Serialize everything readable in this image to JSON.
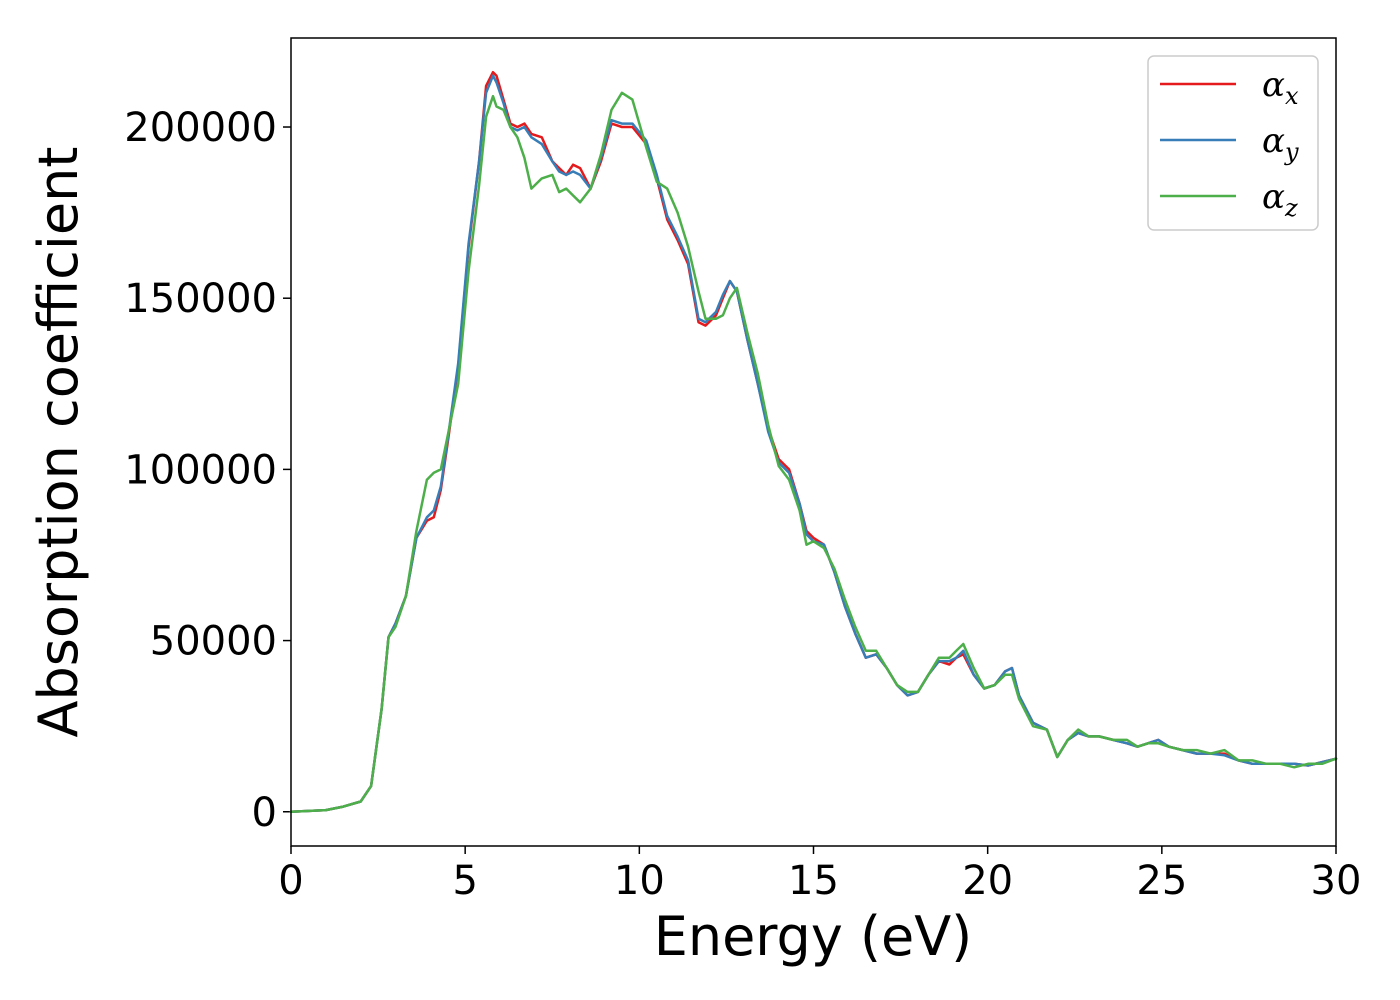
{
  "chart_data": {
    "type": "line",
    "title": "",
    "xlabel": "Energy (eV)",
    "ylabel": "Absorption coefficient",
    "xlim": [
      0,
      30
    ],
    "ylim": [
      -10000,
      226000
    ],
    "x_ticks": [
      0,
      5,
      10,
      15,
      20,
      25,
      30
    ],
    "y_ticks": [
      0,
      50000,
      100000,
      150000,
      200000
    ],
    "grid": false,
    "legend_position": "top-right",
    "series": [
      {
        "name": "α",
        "subscript": "x",
        "color": "#e41a1c",
        "x": [
          0,
          1,
          1.5,
          2,
          2.3,
          2.6,
          2.8,
          3,
          3.3,
          3.6,
          3.9,
          4.1,
          4.3,
          4.5,
          4.8,
          5.1,
          5.4,
          5.6,
          5.8,
          5.9,
          6.1,
          6.3,
          6.5,
          6.7,
          6.9,
          7.2,
          7.5,
          7.7,
          7.9,
          8.1,
          8.3,
          8.6,
          8.9,
          9.2,
          9.5,
          9.8,
          10.2,
          10.5,
          10.8,
          11.1,
          11.4,
          11.7,
          11.9,
          12.2,
          12.4,
          12.6,
          12.8,
          13.1,
          13.4,
          13.7,
          14,
          14.3,
          14.6,
          14.8,
          15,
          15.3,
          15.6,
          15.9,
          16.2,
          16.5,
          16.8,
          17.1,
          17.4,
          17.7,
          18,
          18.3,
          18.6,
          18.9,
          19.1,
          19.3,
          19.6,
          19.9,
          20.2,
          20.5,
          20.7,
          20.9,
          21.3,
          21.7,
          22,
          22.3,
          22.6,
          22.9,
          23.2,
          23.6,
          24,
          24.3,
          24.6,
          24.9,
          25.2,
          25.6,
          26,
          26.4,
          26.8,
          27.2,
          27.6,
          28,
          28.4,
          28.8,
          29.2,
          29.6,
          30
        ],
        "y": [
          0,
          500,
          1500,
          3000,
          7500,
          30000,
          51000,
          55000,
          63000,
          80000,
          85000,
          86000,
          94000,
          108000,
          130000,
          165000,
          190000,
          212000,
          216000,
          215000,
          208000,
          201000,
          200000,
          201000,
          198000,
          197000,
          190000,
          188000,
          186000,
          189000,
          188000,
          182000,
          190000,
          201000,
          200000,
          200000,
          195000,
          185000,
          173000,
          167000,
          160000,
          143000,
          142000,
          145000,
          150000,
          155000,
          152000,
          138000,
          125000,
          112000,
          103000,
          100000,
          90000,
          82000,
          80000,
          78000,
          70000,
          60000,
          52000,
          45000,
          46000,
          42000,
          37000,
          34000,
          35000,
          40000,
          44000,
          43000,
          45000,
          46000,
          40000,
          36000,
          37000,
          41000,
          42000,
          34000,
          26000,
          24000,
          16000,
          21000,
          23000,
          22000,
          22000,
          21000,
          20000,
          19000,
          20000,
          21000,
          19000,
          18000,
          17000,
          17000,
          17000,
          15000,
          14000,
          14000,
          14000,
          14000,
          13500,
          14500,
          15500
        ]
      },
      {
        "name": "α",
        "subscript": "y",
        "color": "#377eb8",
        "x": [
          0,
          1,
          1.5,
          2,
          2.3,
          2.6,
          2.8,
          3,
          3.3,
          3.6,
          3.9,
          4.1,
          4.3,
          4.5,
          4.8,
          5.1,
          5.4,
          5.6,
          5.8,
          5.9,
          6.1,
          6.3,
          6.5,
          6.7,
          6.9,
          7.2,
          7.5,
          7.7,
          7.9,
          8.1,
          8.3,
          8.6,
          8.9,
          9.2,
          9.5,
          9.8,
          10.2,
          10.5,
          10.8,
          11.1,
          11.4,
          11.7,
          11.9,
          12.2,
          12.4,
          12.6,
          12.8,
          13.1,
          13.4,
          13.7,
          14,
          14.3,
          14.6,
          14.8,
          15,
          15.3,
          15.6,
          15.9,
          16.2,
          16.5,
          16.8,
          17.1,
          17.4,
          17.7,
          18,
          18.3,
          18.6,
          18.9,
          19.1,
          19.3,
          19.6,
          19.9,
          20.2,
          20.5,
          20.7,
          20.9,
          21.3,
          21.7,
          22,
          22.3,
          22.6,
          22.9,
          23.2,
          23.6,
          24,
          24.3,
          24.6,
          24.9,
          25.2,
          25.6,
          26,
          26.4,
          26.8,
          27.2,
          27.6,
          28,
          28.4,
          28.8,
          29.2,
          29.6,
          30
        ],
        "y": [
          0,
          500,
          1500,
          3000,
          7500,
          30000,
          51000,
          55000,
          63000,
          80000,
          86000,
          88000,
          95000,
          109000,
          131000,
          166000,
          190000,
          210000,
          215000,
          213000,
          207000,
          200000,
          199000,
          200000,
          197000,
          195000,
          190000,
          187000,
          186000,
          187000,
          186000,
          182000,
          191000,
          202000,
          201000,
          201000,
          196000,
          186000,
          174000,
          168000,
          161000,
          144000,
          143000,
          146000,
          151000,
          155000,
          152000,
          138000,
          125000,
          111000,
          102000,
          99000,
          90000,
          81000,
          79000,
          78000,
          70000,
          60000,
          52000,
          45000,
          46000,
          42000,
          37000,
          34000,
          35000,
          40000,
          44000,
          44000,
          45000,
          47000,
          40000,
          36000,
          37000,
          41000,
          42000,
          34000,
          26000,
          24000,
          16000,
          21000,
          23000,
          22000,
          22000,
          21000,
          20000,
          19000,
          20000,
          21000,
          19000,
          18000,
          17000,
          17000,
          16500,
          15000,
          14000,
          14000,
          14000,
          14000,
          13500,
          14500,
          15500
        ]
      },
      {
        "name": "α",
        "subscript": "z",
        "color": "#4daf4a",
        "x": [
          0,
          1,
          1.5,
          2,
          2.3,
          2.6,
          2.8,
          3,
          3.3,
          3.6,
          3.9,
          4.1,
          4.3,
          4.5,
          4.8,
          5.1,
          5.4,
          5.6,
          5.8,
          5.9,
          6.1,
          6.3,
          6.5,
          6.7,
          6.9,
          7.2,
          7.5,
          7.7,
          7.9,
          8.1,
          8.3,
          8.6,
          8.9,
          9.2,
          9.5,
          9.8,
          10.2,
          10.5,
          10.8,
          11.1,
          11.4,
          11.7,
          11.9,
          12.2,
          12.4,
          12.6,
          12.8,
          13.1,
          13.4,
          13.7,
          14,
          14.3,
          14.6,
          14.8,
          15,
          15.3,
          15.6,
          15.9,
          16.2,
          16.5,
          16.8,
          17.1,
          17.4,
          17.7,
          18,
          18.3,
          18.6,
          18.9,
          19.1,
          19.3,
          19.6,
          19.9,
          20.2,
          20.5,
          20.7,
          20.9,
          21.3,
          21.7,
          22,
          22.3,
          22.6,
          22.9,
          23.2,
          23.6,
          24,
          24.3,
          24.6,
          24.9,
          25.2,
          25.6,
          26,
          26.4,
          26.8,
          27.2,
          27.6,
          28,
          28.4,
          28.8,
          29.2,
          29.6,
          30
        ],
        "y": [
          0,
          500,
          1500,
          3000,
          7500,
          30000,
          51000,
          54000,
          63000,
          82000,
          97000,
          99000,
          100000,
          110000,
          125000,
          158000,
          183000,
          203000,
          209000,
          206000,
          205000,
          200000,
          197000,
          191000,
          182000,
          185000,
          186000,
          181000,
          182000,
          180000,
          178000,
          182000,
          192000,
          205000,
          210000,
          208000,
          194000,
          184000,
          182000,
          175000,
          165000,
          152000,
          144000,
          144000,
          145000,
          150000,
          153000,
          140000,
          128000,
          113000,
          101000,
          97000,
          88000,
          78000,
          79000,
          77000,
          71000,
          62000,
          54000,
          47000,
          47000,
          42000,
          37000,
          35000,
          35000,
          40000,
          45000,
          45000,
          47000,
          49000,
          42000,
          36000,
          37000,
          40000,
          40000,
          33000,
          25000,
          24000,
          16000,
          21000,
          24000,
          22000,
          22000,
          21000,
          21000,
          19000,
          20000,
          20000,
          19000,
          18000,
          18000,
          17000,
          18000,
          15000,
          15000,
          14000,
          14000,
          13000,
          14000,
          14000,
          15500
        ]
      }
    ]
  }
}
